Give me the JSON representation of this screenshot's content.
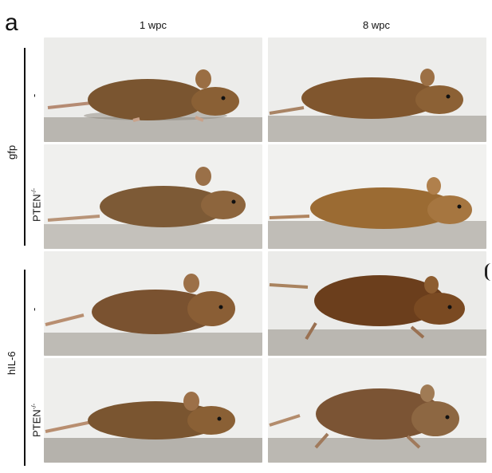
{
  "figure": {
    "panel_letter": "a",
    "columns": [
      "1 wpc",
      "8 wpc"
    ],
    "groups": [
      {
        "label": "gfp",
        "rows": [
          "-",
          "PTEN-/-"
        ]
      },
      {
        "label": "hIL-6",
        "rows": [
          "-",
          "PTEN-/-"
        ]
      }
    ]
  },
  "icons": {
    "mouse_photo": "mouse-photo-icon"
  },
  "colors": {
    "background": "#ffffff",
    "mouse_fur_dark": "#6f4a26",
    "mouse_fur_light": "#a87a45",
    "floor": "#bdbab4",
    "wall": "#e9e9e6"
  }
}
